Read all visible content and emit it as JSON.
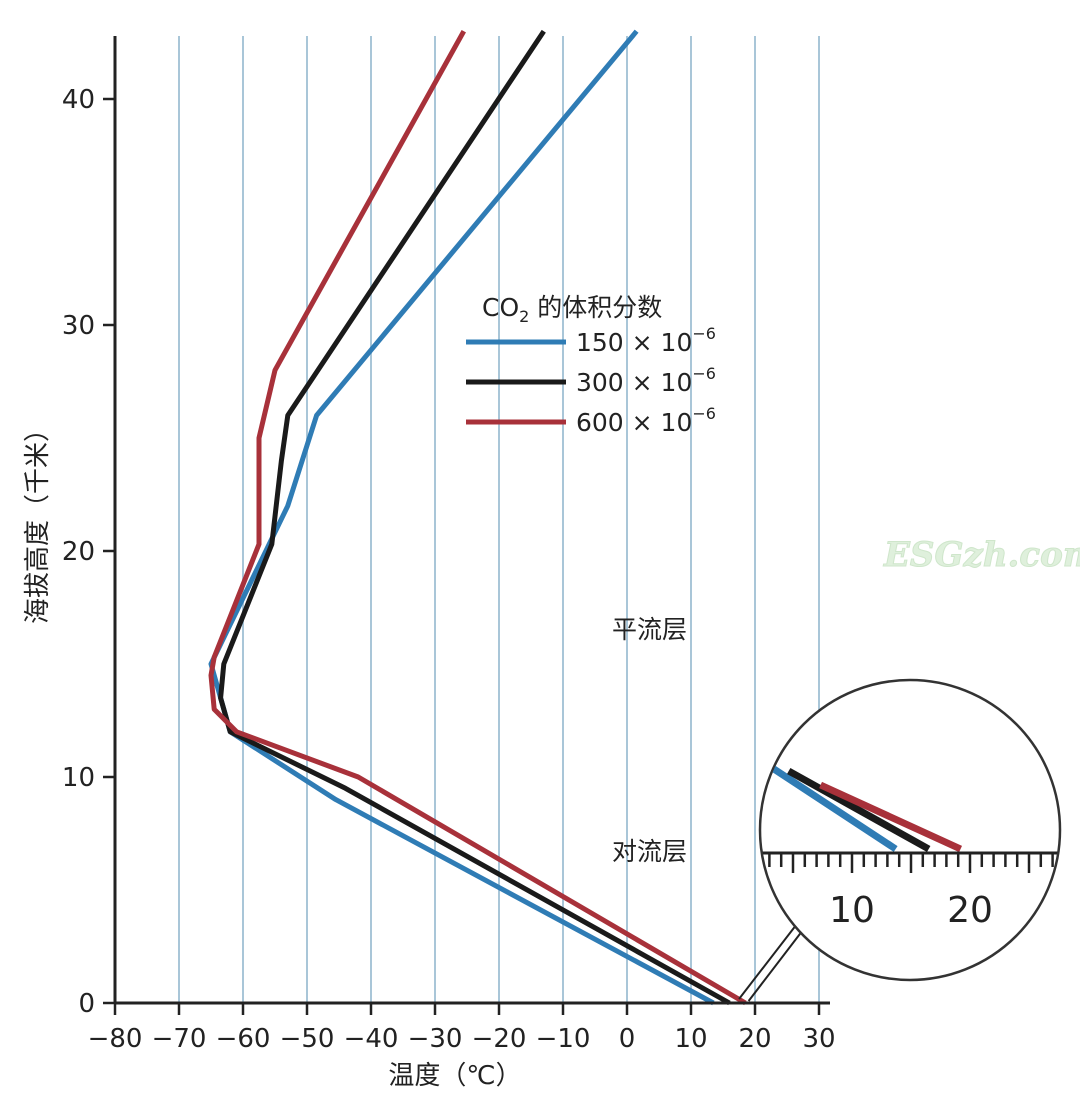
{
  "chart_data": {
    "type": "line",
    "title": "",
    "xlabel": "温度（℃）",
    "ylabel": "海拔高度（千米）",
    "xlim": [
      -80,
      32
    ],
    "ylim": [
      0,
      43
    ],
    "x_ticks": [
      -80,
      -70,
      -60,
      -50,
      -40,
      -30,
      -20,
      -10,
      0,
      10,
      20,
      30
    ],
    "x_tick_labels": [
      "−80",
      "−70",
      "−60",
      "−50",
      "−40",
      "−30",
      "−20",
      "−10",
      "0",
      "10",
      "20",
      "30"
    ],
    "y_ticks": [
      0,
      10,
      20,
      30,
      40
    ],
    "y_tick_labels": [
      "0",
      "10",
      "20",
      "30",
      "40"
    ],
    "grid": "vertical",
    "legend": {
      "title_prefix": "CO",
      "title_sub": "2",
      "title_suffix": " 的体积分数",
      "placement": "upper-middle"
    },
    "series": [
      {
        "name": "150 × 10",
        "name_sup": "−6",
        "color": "#2f7cb5",
        "points": [
          [
            13.5,
            0
          ],
          [
            -45.5,
            9
          ],
          [
            -62,
            12
          ],
          [
            -65,
            15
          ],
          [
            -53,
            22
          ],
          [
            -48.5,
            26
          ],
          [
            1.5,
            43
          ]
        ]
      },
      {
        "name": "300 × 10",
        "name_sup": "−6",
        "color": "#1a1a1a",
        "points": [
          [
            16,
            0
          ],
          [
            -44,
            9.5
          ],
          [
            -62,
            12
          ],
          [
            -63.5,
            13.5
          ],
          [
            -63,
            15
          ],
          [
            -55.5,
            20.3
          ],
          [
            -54,
            24
          ],
          [
            -53,
            26
          ],
          [
            -13,
            43
          ]
        ]
      },
      {
        "name": "600 × 10",
        "name_sup": "−6",
        "color": "#a8313a",
        "points": [
          [
            18.5,
            0
          ],
          [
            -42,
            10
          ],
          [
            -61,
            12
          ],
          [
            -64.5,
            13
          ],
          [
            -65,
            14.5
          ],
          [
            -64.5,
            15.3
          ],
          [
            -57.5,
            20.3
          ],
          [
            -57.5,
            25
          ],
          [
            -55,
            28
          ],
          [
            -25.5,
            43
          ]
        ]
      }
    ],
    "annotations": {
      "stratosphere": "平流层",
      "troposphere": "对流层"
    },
    "inset": {
      "tick_labels": [
        "10",
        "20"
      ],
      "tick_values": [
        10,
        20
      ]
    },
    "watermark": "ESGzh.com"
  }
}
